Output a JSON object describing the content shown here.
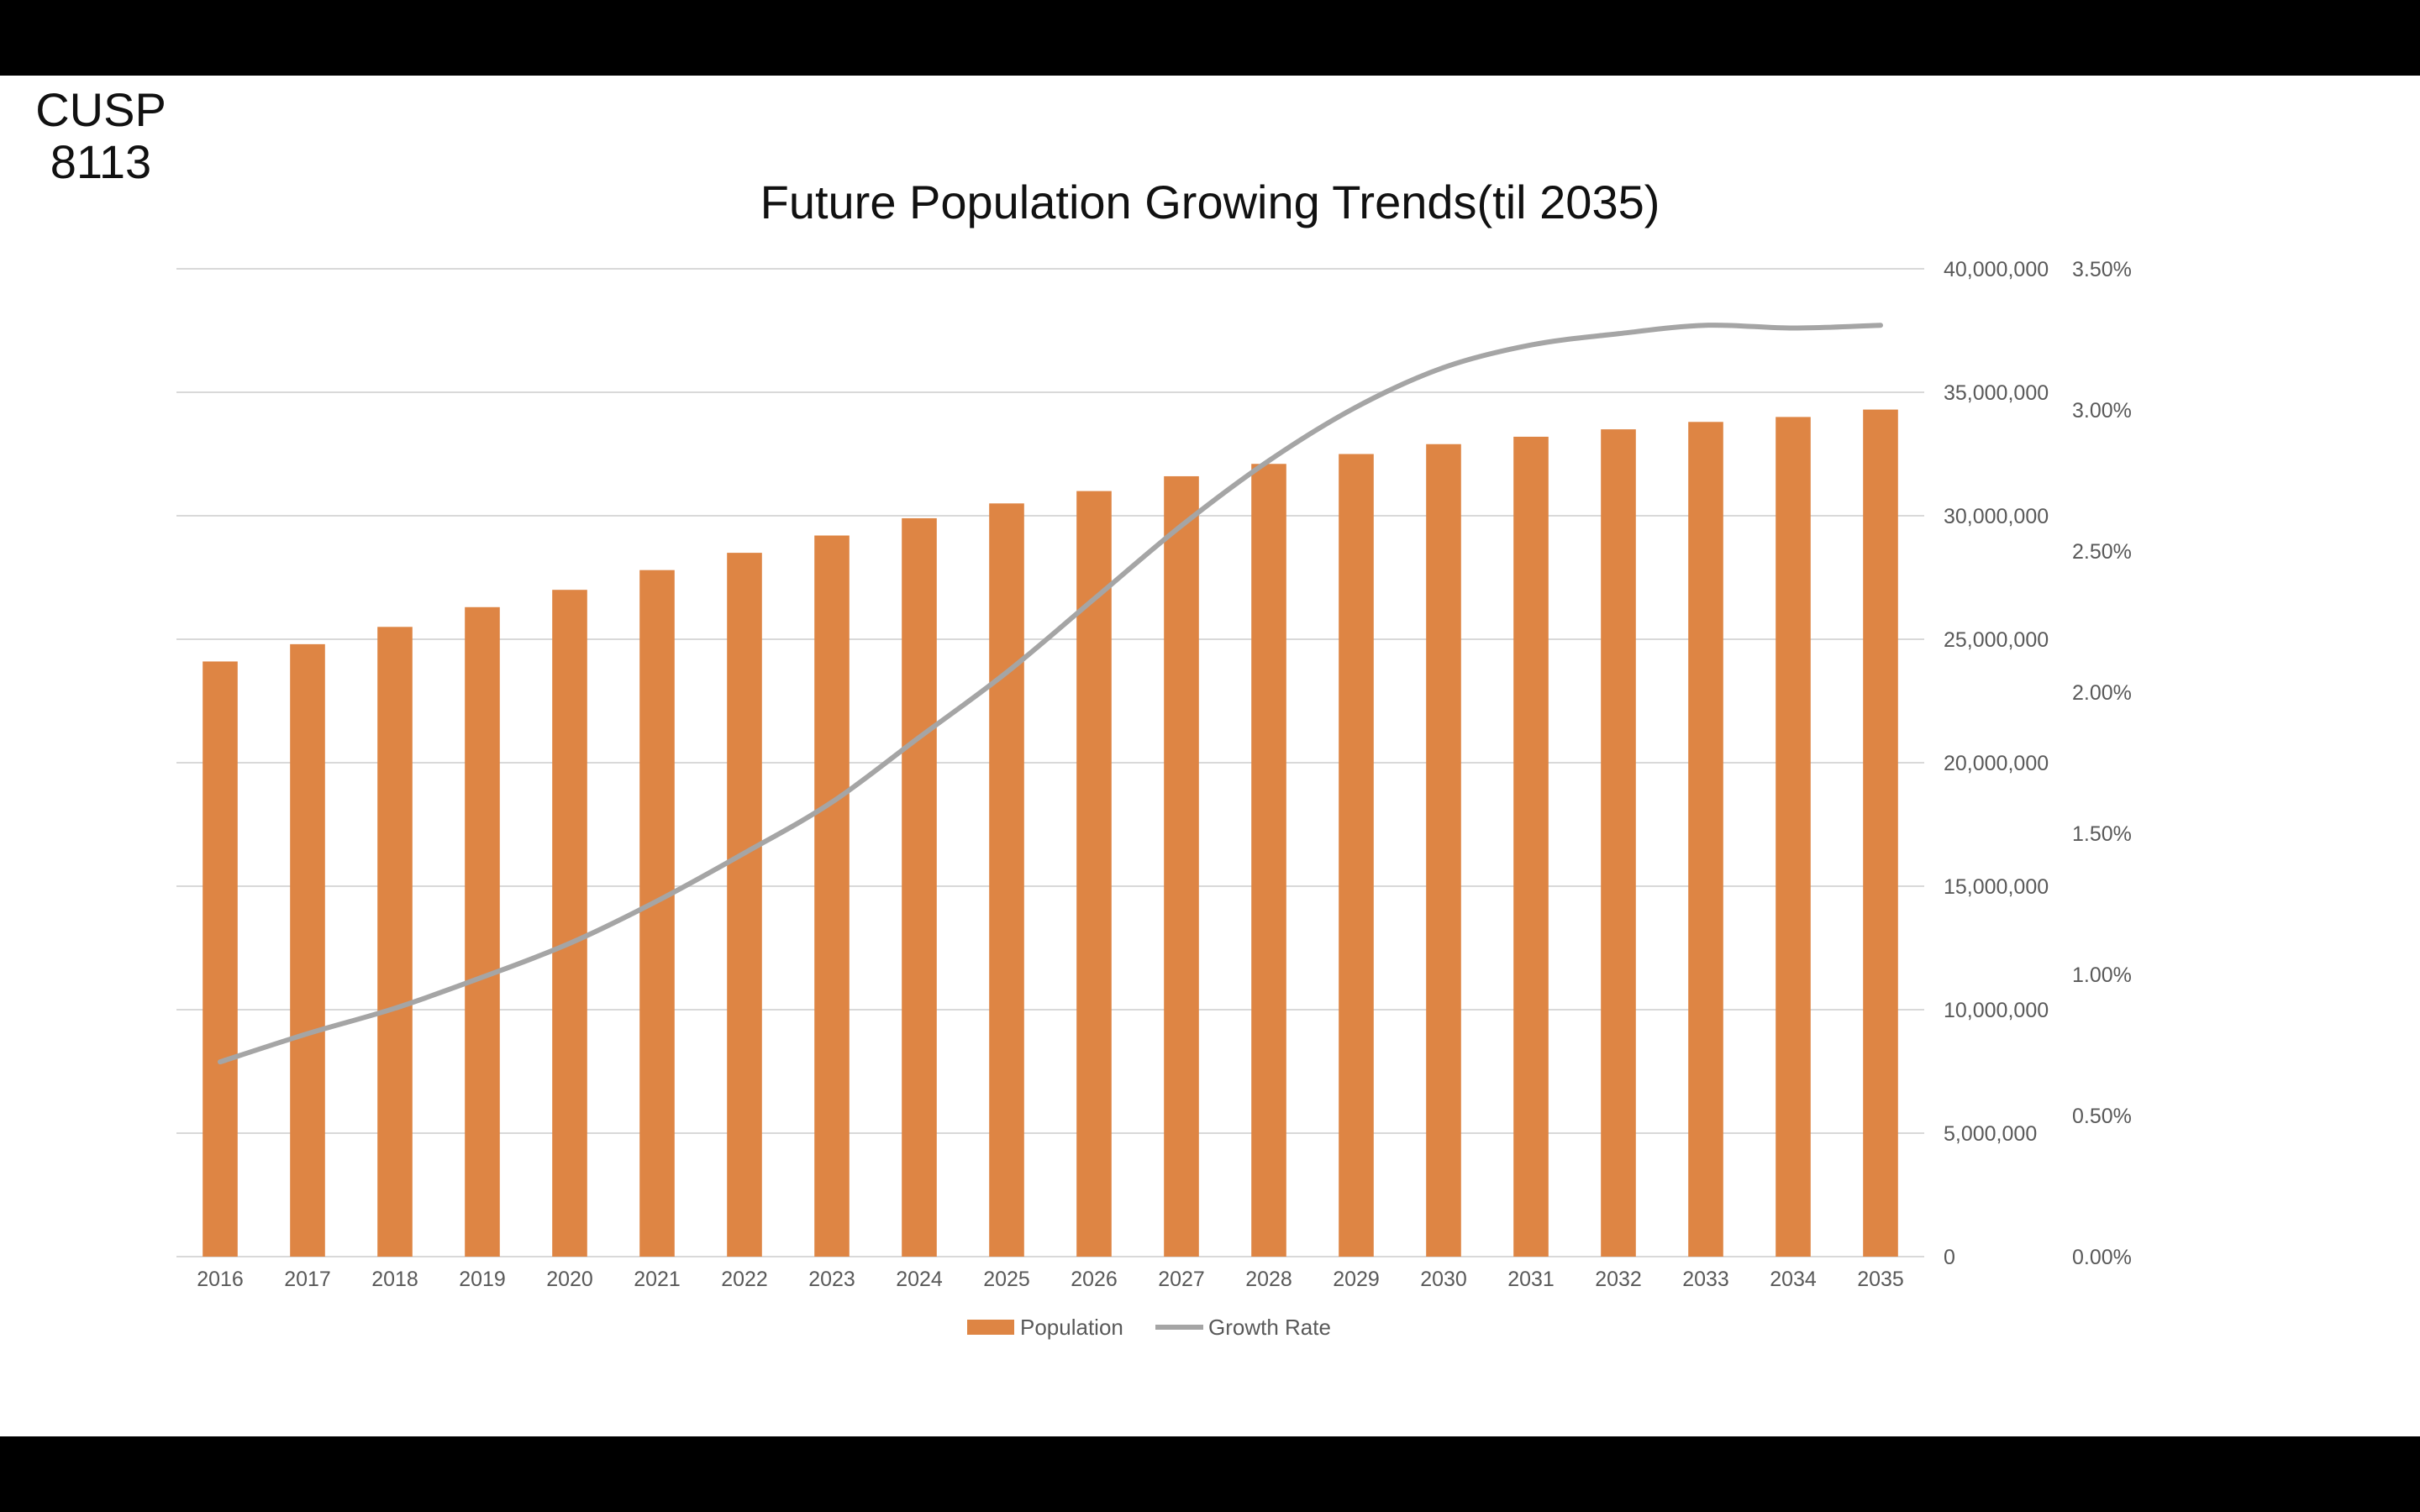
{
  "course": {
    "line1": "CUSP",
    "line2": "8113"
  },
  "chart_data": {
    "type": "bar",
    "title": "Future Population Growing Trends(til 2035)",
    "categories": [
      "2016",
      "2017",
      "2018",
      "2019",
      "2020",
      "2021",
      "2022",
      "2023",
      "2024",
      "2025",
      "2026",
      "2027",
      "2028",
      "2029",
      "2030",
      "2031",
      "2032",
      "2033",
      "2034",
      "2035"
    ],
    "series": [
      {
        "name": "Population",
        "type": "bar",
        "axis": "left",
        "color": "#DE8544",
        "values": [
          24100000,
          24800000,
          25500000,
          26300000,
          27000000,
          27800000,
          28500000,
          29200000,
          29900000,
          30500000,
          31000000,
          31600000,
          32100000,
          32500000,
          32900000,
          33200000,
          33500000,
          33800000,
          34000000,
          34300000
        ]
      },
      {
        "name": "Growth Rate",
        "type": "line",
        "axis": "right",
        "color": "#A5A5A5",
        "values": [
          0.0069,
          0.0079,
          0.0088,
          0.0099,
          0.0111,
          0.0126,
          0.0143,
          0.0161,
          0.0184,
          0.0207,
          0.0233,
          0.0259,
          0.0282,
          0.0301,
          0.0315,
          0.0323,
          0.0327,
          0.033,
          0.0329,
          0.033
        ]
      }
    ],
    "y_left": {
      "min": 0,
      "max": 40000000,
      "ticks": [
        0,
        5000000,
        10000000,
        15000000,
        20000000,
        25000000,
        30000000,
        35000000,
        40000000
      ],
      "tick_labels": [
        "0",
        "5,000,000",
        "10,000,000",
        "15,000,000",
        "20,000,000",
        "25,000,000",
        "30,000,000",
        "35,000,000",
        "40,000,000"
      ]
    },
    "y_right": {
      "min": 0,
      "max": 0.035,
      "ticks": [
        0,
        0.005,
        0.01,
        0.015,
        0.02,
        0.025,
        0.03,
        0.035
      ],
      "tick_labels": [
        "0.00%",
        "0.50%",
        "1.00%",
        "1.50%",
        "2.00%",
        "2.50%",
        "3.00%",
        "3.50%"
      ]
    },
    "grid": true,
    "legend": "bottom",
    "colors": {
      "gridline": "#D9D9D9",
      "axis_text": "#595959"
    }
  }
}
